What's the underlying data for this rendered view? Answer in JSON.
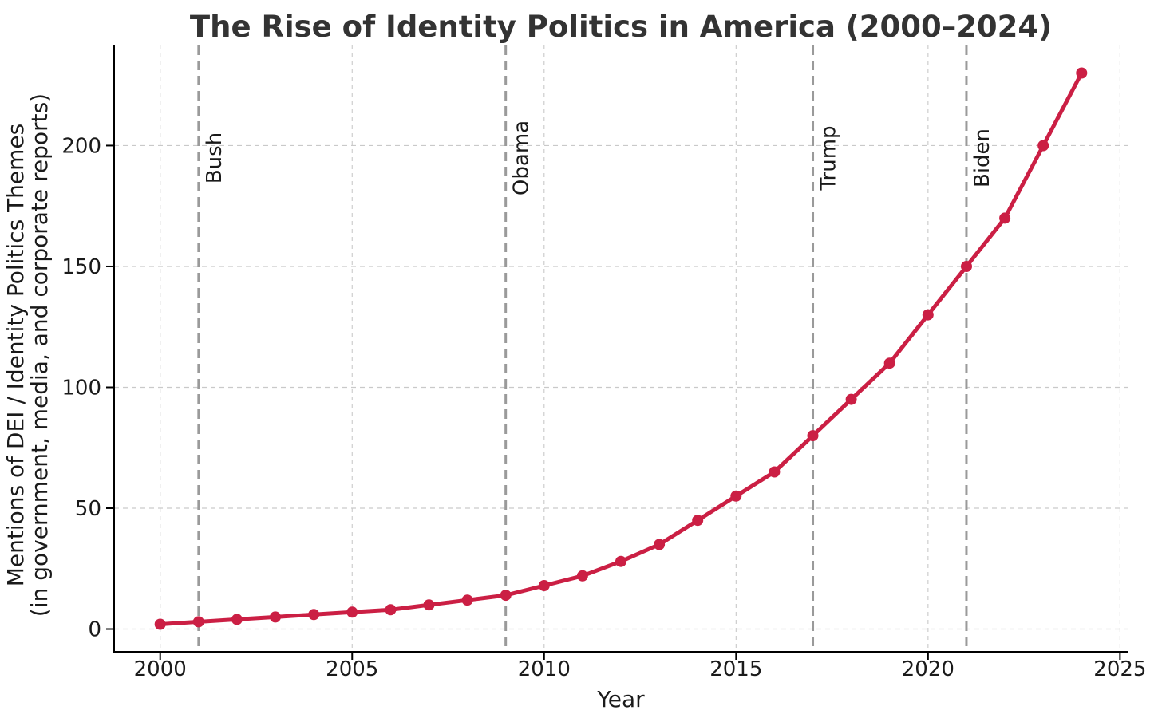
{
  "chart_data": {
    "type": "line",
    "title": "The Rise of Identity Politics in America (2000–2024)",
    "xlabel": "Year",
    "ylabel_line1": "Mentions of DEI / Identity Politics Themes",
    "ylabel_line2": "(in government, media, and corporate reports)",
    "x": [
      2000,
      2001,
      2002,
      2003,
      2004,
      2005,
      2006,
      2007,
      2008,
      2009,
      2010,
      2011,
      2012,
      2013,
      2014,
      2015,
      2016,
      2017,
      2018,
      2019,
      2020,
      2021,
      2022,
      2023,
      2024
    ],
    "values": [
      2,
      3,
      4,
      5,
      6,
      7,
      8,
      10,
      12,
      14,
      18,
      22,
      28,
      35,
      45,
      55,
      65,
      80,
      95,
      110,
      130,
      150,
      170,
      200,
      230
    ],
    "xticks": [
      2000,
      2005,
      2010,
      2015,
      2020,
      2025
    ],
    "yticks": [
      0,
      50,
      100,
      150,
      200
    ],
    "xlim": [
      1998.8,
      2025.2
    ],
    "ylim": [
      -9.4,
      241.4
    ],
    "grid": true,
    "legend": "none",
    "annotations": [
      {
        "label": "Bush",
        "year": 2001
      },
      {
        "label": "Obama",
        "year": 2009
      },
      {
        "label": "Trump",
        "year": 2017
      },
      {
        "label": "Biden",
        "year": 2021
      }
    ],
    "colors": {
      "line": "#CB1F44",
      "marker": "#CB1F44",
      "grid": "#c9c9c9",
      "president_line": "#9a9a9a",
      "tick_text": "#1a1a1a",
      "axis_text": "#1a1a1a",
      "title": "#333333",
      "spine": "#000000",
      "background": "#ffffff"
    }
  }
}
